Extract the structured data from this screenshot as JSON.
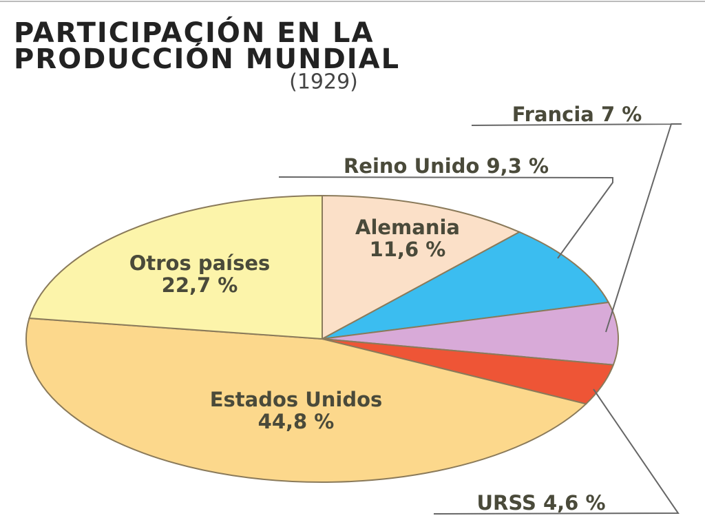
{
  "chart_data": {
    "type": "pie",
    "title": [
      "PARTICIPACIÓN EN LA",
      "PRODUCCIÓN MUNDIAL"
    ],
    "subtitle": "(1929)",
    "categories": [
      "Alemania",
      "Reino Unido",
      "Francia",
      "URSS",
      "Estados Unidos",
      "Otros países"
    ],
    "values": [
      11.6,
      9.3,
      7,
      4.6,
      44.8,
      22.7
    ],
    "value_labels": [
      "11,6 %",
      "9,3 %",
      "7 %",
      "4,6 %",
      "44,8 %",
      "22,7 %"
    ],
    "colors": [
      "#fbe0c8",
      "#3bbdf0",
      "#d8aad8",
      "#ee5536",
      "#fcd88c",
      "#fcf4aa"
    ]
  }
}
